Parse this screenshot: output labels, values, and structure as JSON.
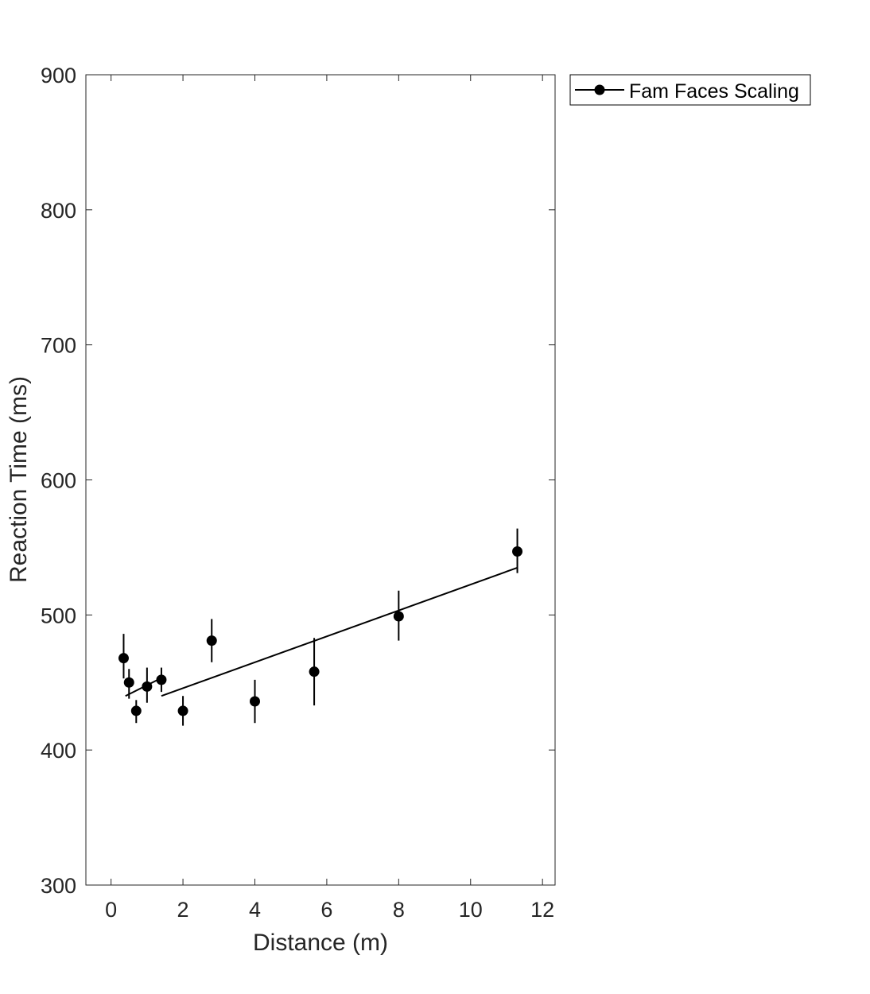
{
  "chart_data": {
    "type": "scatter",
    "xlabel": "Distance (m)",
    "ylabel": "Reaction Time (ms)",
    "xlim": [
      -0.7,
      12.35
    ],
    "ylim": [
      300,
      900
    ],
    "xticks": [
      0,
      2,
      4,
      6,
      8,
      10,
      12
    ],
    "yticks": [
      300,
      400,
      500,
      600,
      700,
      800,
      900
    ],
    "grid": false,
    "legend_position": "outside-top-right",
    "colors": {
      "series": "#000000",
      "axis": "#262626",
      "background": "#ffffff"
    },
    "series": [
      {
        "name": "Fam Faces Scaling",
        "marker": "circle",
        "x": [
          0.35,
          0.5,
          0.7,
          1.0,
          1.4,
          2.0,
          2.8,
          4.0,
          5.65,
          8.0,
          11.3
        ],
        "y": [
          468,
          450,
          429,
          447,
          452,
          429,
          481,
          436,
          458,
          499,
          547
        ],
        "error": [
          [
            453,
            486
          ],
          [
            438,
            460
          ],
          [
            420,
            437
          ],
          [
            435,
            461
          ],
          [
            443,
            461
          ],
          [
            418,
            440
          ],
          [
            465,
            497
          ],
          [
            420,
            452
          ],
          [
            433,
            483
          ],
          [
            481,
            518
          ],
          [
            531,
            564
          ]
        ]
      }
    ],
    "fit_lines": [
      {
        "x": [
          0.4,
          1.3
        ],
        "y": [
          440,
          452
        ]
      },
      {
        "x": [
          1.4,
          11.3
        ],
        "y": [
          440,
          535
        ]
      }
    ]
  }
}
